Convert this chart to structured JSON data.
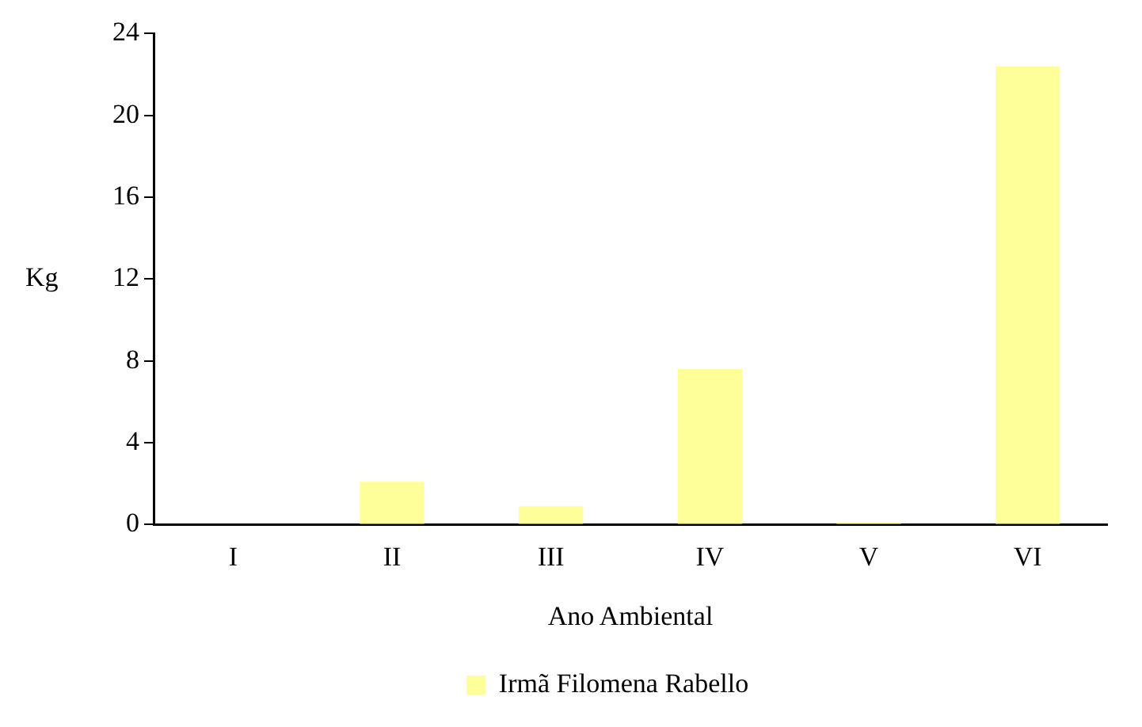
{
  "chart_data": {
    "type": "bar",
    "xlabel": "Ano Ambiental",
    "ylabel": "Kg",
    "categories": [
      "I",
      "II",
      "III",
      "IV",
      "V",
      "VI"
    ],
    "series": [
      {
        "name": "Irmã Filomena Rabello",
        "color": "#ffff99",
        "values": [
          0,
          2.1,
          0.9,
          7.6,
          0.1,
          22.4
        ]
      }
    ],
    "ylim": [
      0,
      24
    ],
    "yticks": [
      0,
      4,
      8,
      12,
      16,
      20,
      24
    ],
    "grid": false,
    "legend": "bottom"
  }
}
